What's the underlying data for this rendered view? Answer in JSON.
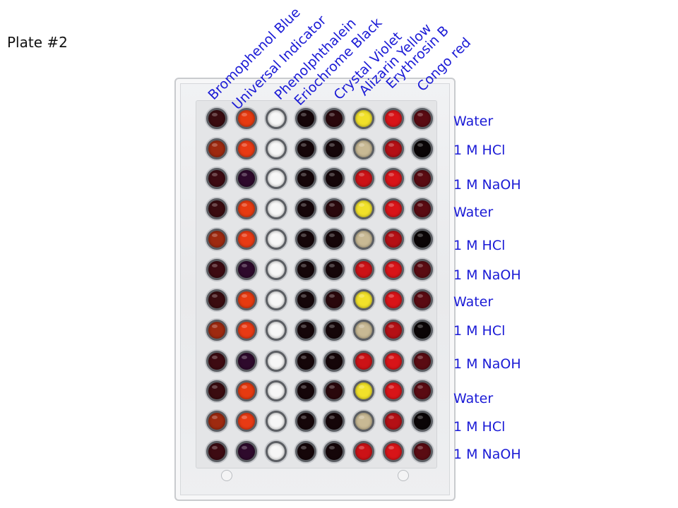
{
  "plate_title": "Plate #2",
  "columns": [
    "Bromophenol Blue",
    "Universal Indicator",
    "Phenolphthalein",
    "Eriochrome Black",
    "Crystal Violet",
    "Alizarin Yellow",
    "Erythrosin B",
    "Congo red"
  ],
  "rows": [
    "Water",
    "1 M HCl",
    "1 M NaOH",
    "Water",
    "1 M HCl",
    "1 M NaOH",
    "Water",
    "1 M HCl",
    "1 M NaOH",
    "Water",
    "1 M HCl",
    "1 M NaOH"
  ],
  "colors": {
    "label_blue": "#1a1ad6"
  },
  "well_colors": [
    [
      "#3a0c10",
      "#e63a10",
      "#f6f6f6",
      "#150609",
      "#2a080c",
      "#f1e12a",
      "#d81418",
      "#5a0b12"
    ],
    [
      "#9e2a10",
      "#e83a14",
      "#f6f6f6",
      "#150609",
      "#150609",
      "#c8b994",
      "#b41015",
      "#0a0506"
    ],
    [
      "#3d0b12",
      "#2e0a2c",
      "#f6f6f6",
      "#150609",
      "#150609",
      "#cc1216",
      "#d81418",
      "#5a0b12"
    ],
    [
      "#3a0c10",
      "#e63a10",
      "#f6f6f6",
      "#150609",
      "#2a080c",
      "#f1e12a",
      "#d81418",
      "#5a0b12"
    ],
    [
      "#9e2a10",
      "#e83a14",
      "#f6f6f6",
      "#150609",
      "#150609",
      "#c8b994",
      "#b41015",
      "#0a0506"
    ],
    [
      "#3d0b12",
      "#2e0a2c",
      "#f6f6f6",
      "#150609",
      "#150609",
      "#cc1216",
      "#d81418",
      "#5a0b12"
    ],
    [
      "#3a0c10",
      "#e63a10",
      "#f6f6f6",
      "#150609",
      "#2a080c",
      "#f1e12a",
      "#d81418",
      "#5a0b12"
    ],
    [
      "#9e2a10",
      "#e83a14",
      "#f6f6f6",
      "#150609",
      "#150609",
      "#c8b994",
      "#b41015",
      "#0a0506"
    ],
    [
      "#3d0b12",
      "#2e0a2c",
      "#f6f6f6",
      "#150609",
      "#150609",
      "#cc1216",
      "#d81418",
      "#5a0b12"
    ],
    [
      "#3a0c10",
      "#e63a10",
      "#f6f6f6",
      "#150609",
      "#2a080c",
      "#f1e12a",
      "#d81418",
      "#5a0b12"
    ],
    [
      "#9e2a10",
      "#e83a14",
      "#f6f6f6",
      "#150609",
      "#150609",
      "#c8b994",
      "#b41015",
      "#0a0506"
    ],
    [
      "#3d0b12",
      "#2e0a2c",
      "#f6f6f6",
      "#150609",
      "#150609",
      "#cc1216",
      "#d81418",
      "#5a0b12"
    ]
  ]
}
